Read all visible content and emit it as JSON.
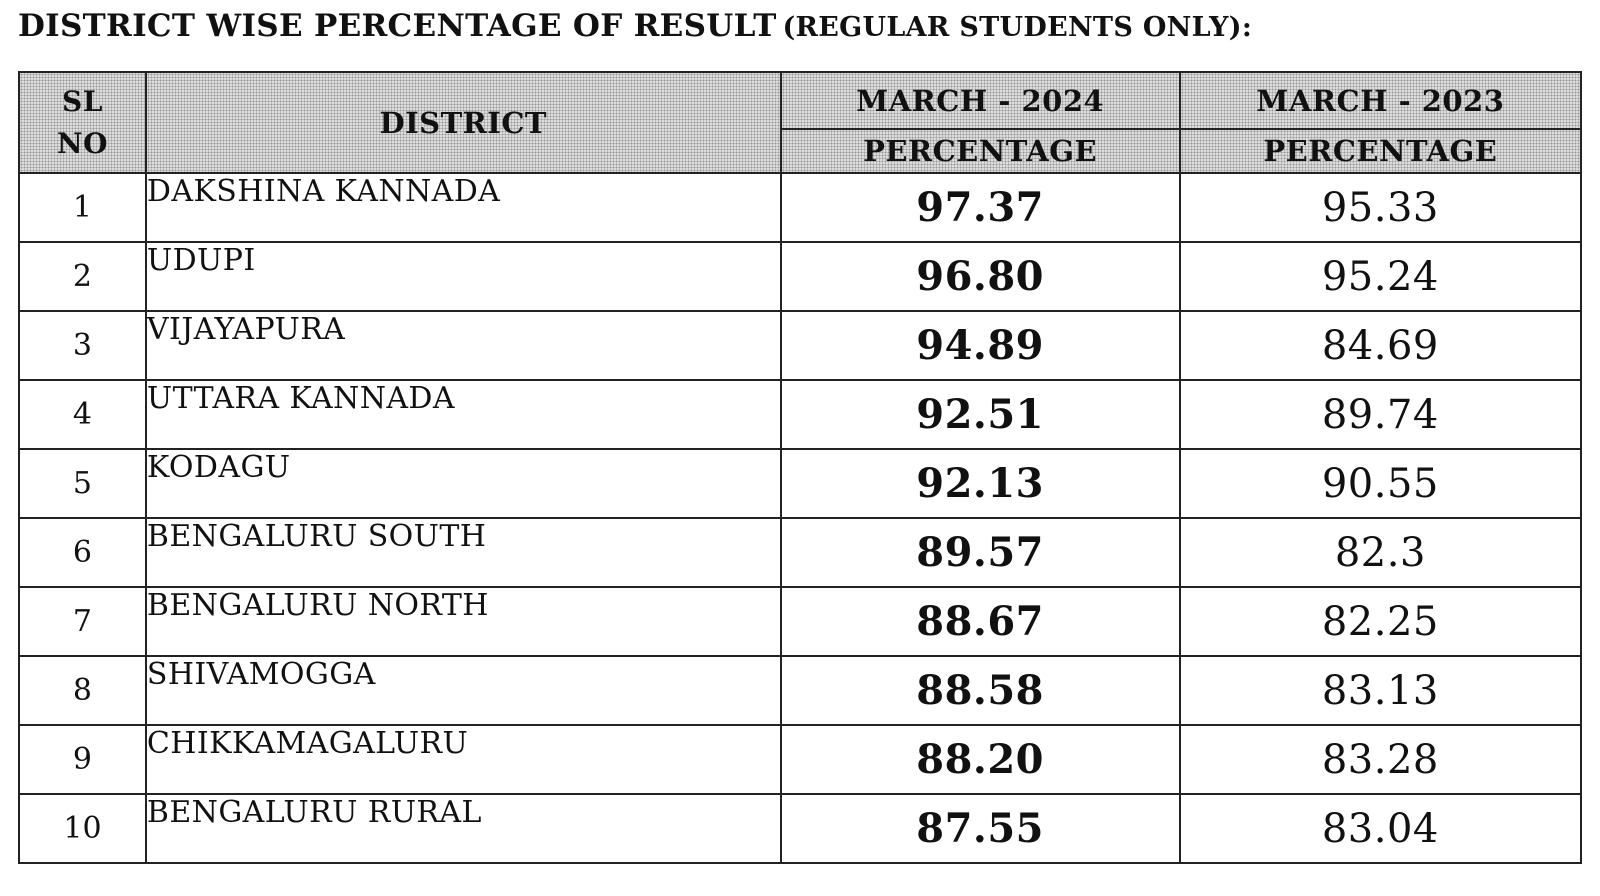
{
  "document": {
    "title_main": "DISTRICT WISE PERCENTAGE OF RESULT",
    "title_sub": "(REGULAR STUDENTS ONLY):"
  },
  "table": {
    "headers": {
      "sl_line1": "SL",
      "sl_line2": "NO",
      "district": "DISTRICT",
      "year_2024": "MARCH - 2024",
      "year_2023": "MARCH - 2023",
      "pct_2024": "PERCENTAGE",
      "pct_2023": "PERCENTAGE"
    },
    "rows": [
      {
        "sl": "1",
        "district": "DAKSHINA KANNADA",
        "pct_2024": "97.37",
        "pct_2023": "95.33"
      },
      {
        "sl": "2",
        "district": "UDUPI",
        "pct_2024": "96.80",
        "pct_2023": "95.24"
      },
      {
        "sl": "3",
        "district": "VIJAYAPURA",
        "pct_2024": "94.89",
        "pct_2023": "84.69"
      },
      {
        "sl": "4",
        "district": "UTTARA KANNADA",
        "pct_2024": "92.51",
        "pct_2023": "89.74"
      },
      {
        "sl": "5",
        "district": "KODAGU",
        "pct_2024": "92.13",
        "pct_2023": "90.55"
      },
      {
        "sl": "6",
        "district": "BENGALURU SOUTH",
        "pct_2024": "89.57",
        "pct_2023": "82.3"
      },
      {
        "sl": "7",
        "district": "BENGALURU NORTH",
        "pct_2024": "88.67",
        "pct_2023": "82.25"
      },
      {
        "sl": "8",
        "district": "SHIVAMOGGA",
        "pct_2024": "88.58",
        "pct_2023": "83.13"
      },
      {
        "sl": "9",
        "district": "CHIKKAMAGALURU",
        "pct_2024": "88.20",
        "pct_2023": "83.28"
      },
      {
        "sl": "10",
        "district": "BENGALURU RURAL",
        "pct_2024": "87.55",
        "pct_2023": "83.04"
      }
    ]
  }
}
